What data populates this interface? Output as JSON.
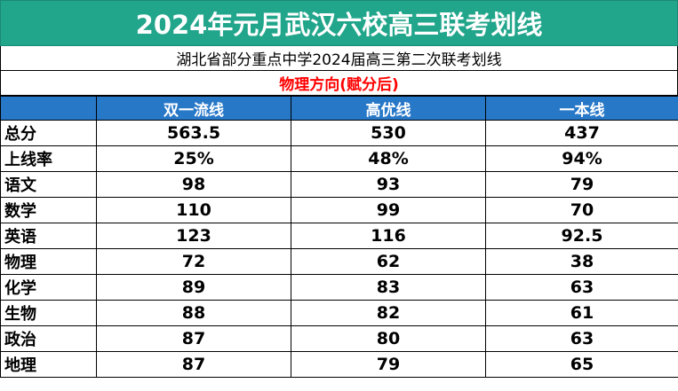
{
  "title": "2024年元月武汉六校高三联考划线",
  "subtitle": "湖北省部分重点中学2024届高三第二次联考划线",
  "section": "物理方向(赋分后)",
  "columns": [
    "",
    "双一流线",
    "高优线",
    "一本线"
  ],
  "rows": [
    {
      "label": "总分",
      "values": [
        "563.5",
        "530",
        "437"
      ]
    },
    {
      "label": "上线率",
      "values": [
        "25%",
        "48%",
        "94%"
      ]
    },
    {
      "label": "语文",
      "values": [
        "98",
        "93",
        "79"
      ]
    },
    {
      "label": "数学",
      "values": [
        "110",
        "99",
        "70"
      ]
    },
    {
      "label": "英语",
      "values": [
        "123",
        "116",
        "92.5"
      ]
    },
    {
      "label": "物理",
      "values": [
        "72",
        "62",
        "38"
      ]
    },
    {
      "label": "化学",
      "values": [
        "89",
        "83",
        "63"
      ]
    },
    {
      "label": "生物",
      "values": [
        "88",
        "82",
        "61"
      ]
    },
    {
      "label": "政治",
      "values": [
        "87",
        "80",
        "63"
      ]
    },
    {
      "label": "地理",
      "values": [
        "87",
        "79",
        "65"
      ]
    }
  ],
  "colors": {
    "title_bg": "#21a58b",
    "header_bg": "#2878c8",
    "section_text": "#ff0000"
  }
}
